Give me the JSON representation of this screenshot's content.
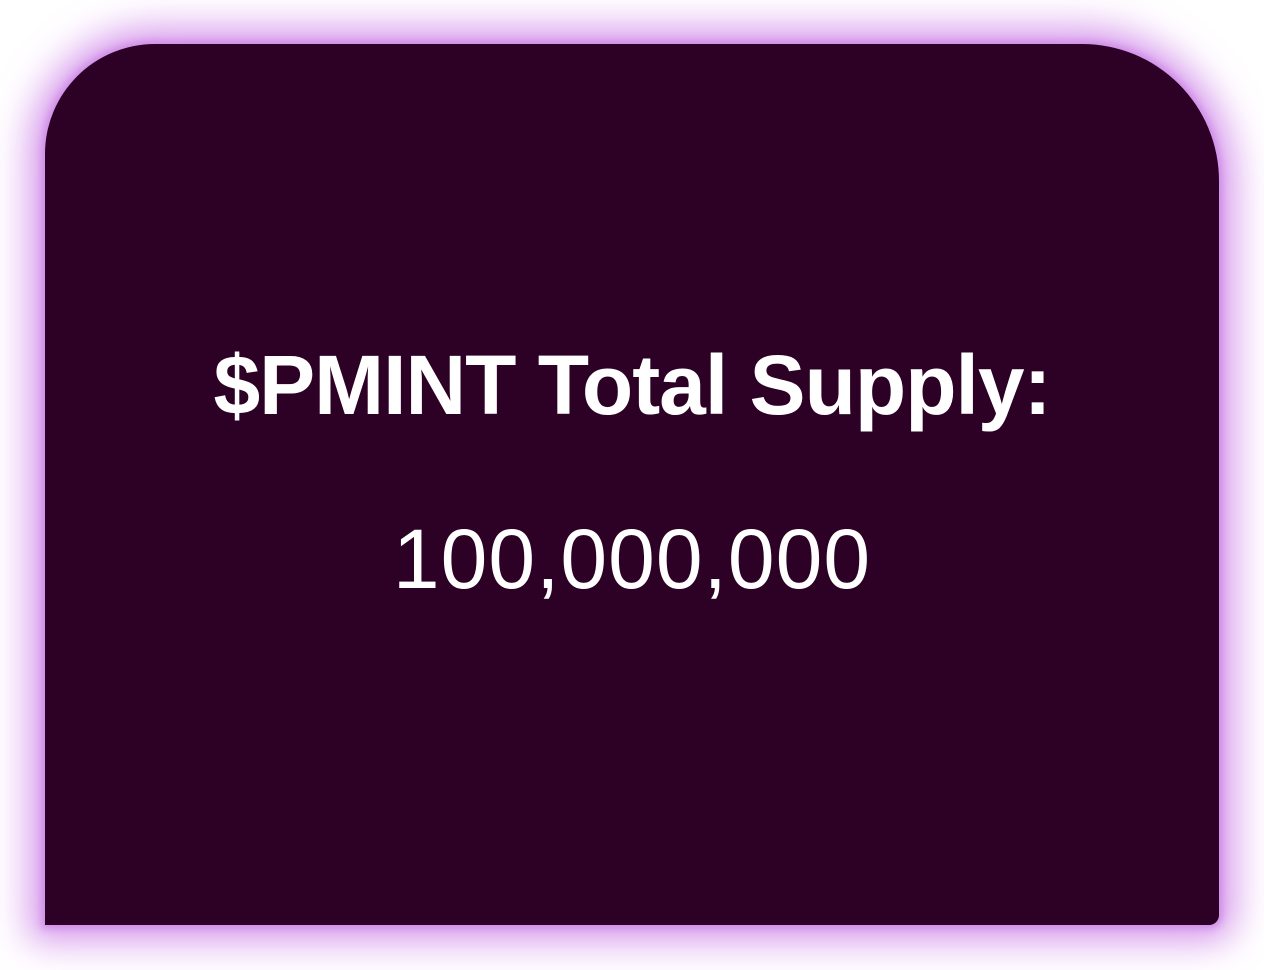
{
  "card": {
    "label": "$PMINT Total Supply:",
    "value": "100,000,000"
  },
  "colors": {
    "card_background": "#2d0026",
    "glow": "#d9a2ee",
    "text": "#ffffff"
  }
}
